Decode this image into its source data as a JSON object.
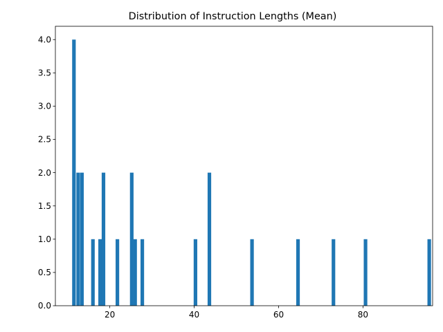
{
  "chart_data": {
    "type": "bar",
    "title": "Distribution of Instruction Lengths (Mean)",
    "xlabel": "",
    "ylabel": "",
    "xlim": [
      7.1,
      96.5
    ],
    "ylim": [
      0,
      4.2
    ],
    "bin_width": 0.85,
    "bars": [
      {
        "x": 11.5,
        "value": 4
      },
      {
        "x": 12.5,
        "value": 2
      },
      {
        "x": 13.4,
        "value": 2
      },
      {
        "x": 16.0,
        "value": 1
      },
      {
        "x": 17.7,
        "value": 1
      },
      {
        "x": 18.5,
        "value": 2
      },
      {
        "x": 21.8,
        "value": 1
      },
      {
        "x": 25.2,
        "value": 2
      },
      {
        "x": 26.0,
        "value": 1
      },
      {
        "x": 27.7,
        "value": 1
      },
      {
        "x": 40.3,
        "value": 1
      },
      {
        "x": 43.6,
        "value": 2
      },
      {
        "x": 53.7,
        "value": 1
      },
      {
        "x": 64.6,
        "value": 1
      },
      {
        "x": 73.0,
        "value": 1
      },
      {
        "x": 80.6,
        "value": 1
      },
      {
        "x": 95.7,
        "value": 1
      }
    ],
    "xticks": [
      20,
      40,
      60,
      80
    ],
    "xtick_labels": [
      "20",
      "40",
      "60",
      "80"
    ],
    "yticks": [
      0,
      0.5,
      1,
      1.5,
      2,
      2.5,
      3,
      3.5,
      4
    ],
    "ytick_labels": [
      "0.0",
      "0.5",
      "1.0",
      "1.5",
      "2.0",
      "2.5",
      "3.0",
      "3.5",
      "4.0"
    ],
    "grid": false,
    "bar_color": "#1f77b4"
  }
}
